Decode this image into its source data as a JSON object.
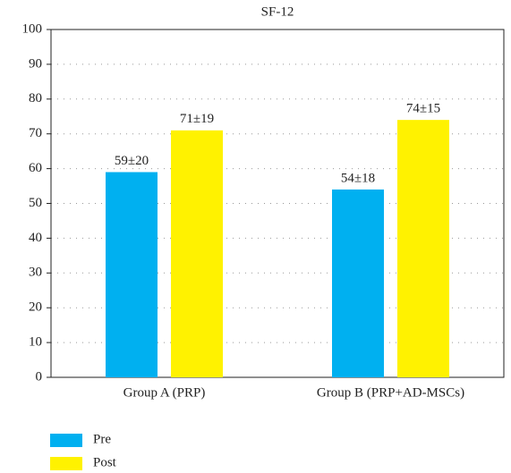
{
  "chart_data": {
    "type": "bar",
    "title": "SF-12",
    "categories": [
      "Group A (PRP)",
      "Group B (PRP+AD-MSCs)"
    ],
    "series": [
      {
        "name": "Pre",
        "color": "#00b0f0",
        "values": [
          59,
          54
        ],
        "value_labels": [
          "59±20",
          "54±18"
        ]
      },
      {
        "name": "Post",
        "color": "#fff200",
        "values": [
          71,
          74
        ],
        "value_labels": [
          "71±19",
          "74±15"
        ]
      }
    ],
    "ylim": [
      0,
      100
    ],
    "yticks": [
      0,
      10,
      20,
      30,
      40,
      50,
      60,
      70,
      80,
      90,
      100
    ],
    "grid": true,
    "legend": "bottom-left"
  }
}
